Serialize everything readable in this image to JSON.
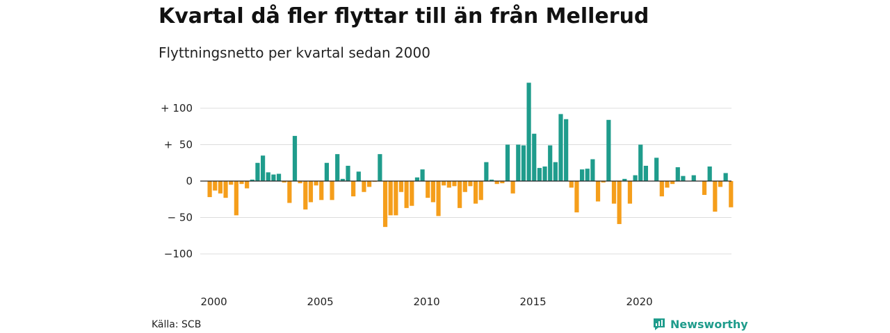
{
  "title": "Kvartal då fler flyttar till än från Mellerud",
  "subtitle": "Flyttningsnetto per kvartal sedan 2000",
  "source": "Källa: SCB",
  "brand": {
    "name": "Newsworthy",
    "icon": "newsworthy-logo-icon",
    "color": "#1f9c8c"
  },
  "colors": {
    "positive": "#1f9c8c",
    "negative": "#f59e1b",
    "grid": "#dcdcdc",
    "zero": "#222222"
  },
  "chart_data": {
    "type": "bar",
    "title": "Kvartal då fler flyttar till än från Mellerud",
    "subtitle": "Flyttningsnetto per kvartal sedan 2000",
    "xlabel": "",
    "ylabel": "",
    "ylim": [
      -140,
      140
    ],
    "yticks": [
      100,
      50,
      0,
      -50,
      -100
    ],
    "ytick_labels": [
      "+ 100",
      "+  50",
      "0",
      "− 50",
      "−100"
    ],
    "xticks": [
      2000,
      2005,
      2010,
      2015,
      2020
    ],
    "xtick_labels": [
      "2000",
      "2005",
      "2010",
      "2015",
      "2020"
    ],
    "grid": true,
    "legend": "none",
    "start_year": 2000,
    "start_quarter": 1,
    "values": [
      -22,
      -13,
      -17,
      -23,
      -5,
      -47,
      -4,
      -10,
      2,
      25,
      35,
      12,
      9,
      10,
      -2,
      -30,
      62,
      -3,
      -39,
      -29,
      -6,
      -26,
      25,
      -26,
      37,
      3,
      21,
      -21,
      13,
      -15,
      -8,
      -1,
      37,
      -63,
      -47,
      -47,
      -15,
      -37,
      -34,
      5,
      16,
      -23,
      -29,
      -48,
      -6,
      -9,
      -7,
      -37,
      -15,
      -7,
      -31,
      -26,
      26,
      2,
      -4,
      -3,
      50,
      -17,
      50,
      49,
      135,
      65,
      18,
      20,
      49,
      26,
      92,
      85,
      -9,
      -43,
      16,
      17,
      30,
      -28,
      -2,
      84,
      -31,
      -59,
      3,
      -31,
      8,
      50,
      21,
      0,
      32,
      -21,
      -9,
      -4,
      19,
      7,
      0,
      8,
      0,
      -19,
      20,
      -42,
      -8,
      11,
      -36
    ]
  }
}
